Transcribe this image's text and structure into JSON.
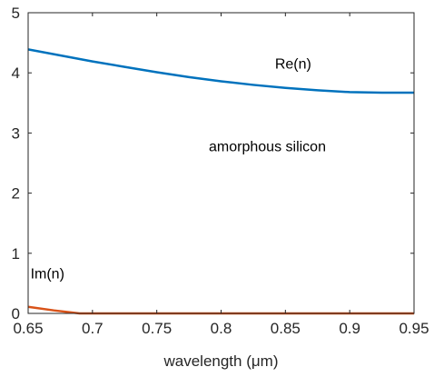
{
  "chart_data": {
    "type": "line",
    "title": "",
    "xlabel": "wavelength (μm)",
    "ylabel": "",
    "xlim": [
      0.65,
      0.95
    ],
    "ylim": [
      0,
      5
    ],
    "grid": false,
    "xticks": [
      0.65,
      0.7,
      0.75,
      0.8,
      0.85,
      0.9,
      0.95
    ],
    "xtick_labels": [
      "0.65",
      "0.7",
      "0.75",
      "0.8",
      "0.85",
      "0.9",
      "0.95"
    ],
    "yticks": [
      0,
      1,
      2,
      3,
      4,
      5
    ],
    "ytick_labels": [
      "0",
      "1",
      "2",
      "3",
      "4",
      "5"
    ],
    "series": [
      {
        "name": "Re(n)",
        "color": "#0072BD",
        "x": [
          0.65,
          0.675,
          0.7,
          0.725,
          0.75,
          0.775,
          0.8,
          0.825,
          0.85,
          0.875,
          0.9,
          0.925,
          0.95
        ],
        "y": [
          4.39,
          4.29,
          4.19,
          4.1,
          4.01,
          3.93,
          3.86,
          3.8,
          3.75,
          3.71,
          3.68,
          3.67,
          3.67
        ]
      },
      {
        "name": "Im(n)",
        "color": "#D95319",
        "x": [
          0.65,
          0.67,
          0.69,
          0.7,
          0.75,
          0.8,
          0.85,
          0.9,
          0.95
        ],
        "y": [
          0.11,
          0.05,
          0.0,
          0.0,
          0.0,
          0.0,
          0.0,
          0.0,
          0.0
        ]
      }
    ],
    "annotations": [
      {
        "text": "Re(n)",
        "x": 0.856,
        "y": 4.07
      },
      {
        "text": "amorphous silicon",
        "x": 0.836,
        "y": 2.7
      },
      {
        "text": "Im(n)",
        "x": 0.665,
        "y": 0.58
      }
    ]
  }
}
